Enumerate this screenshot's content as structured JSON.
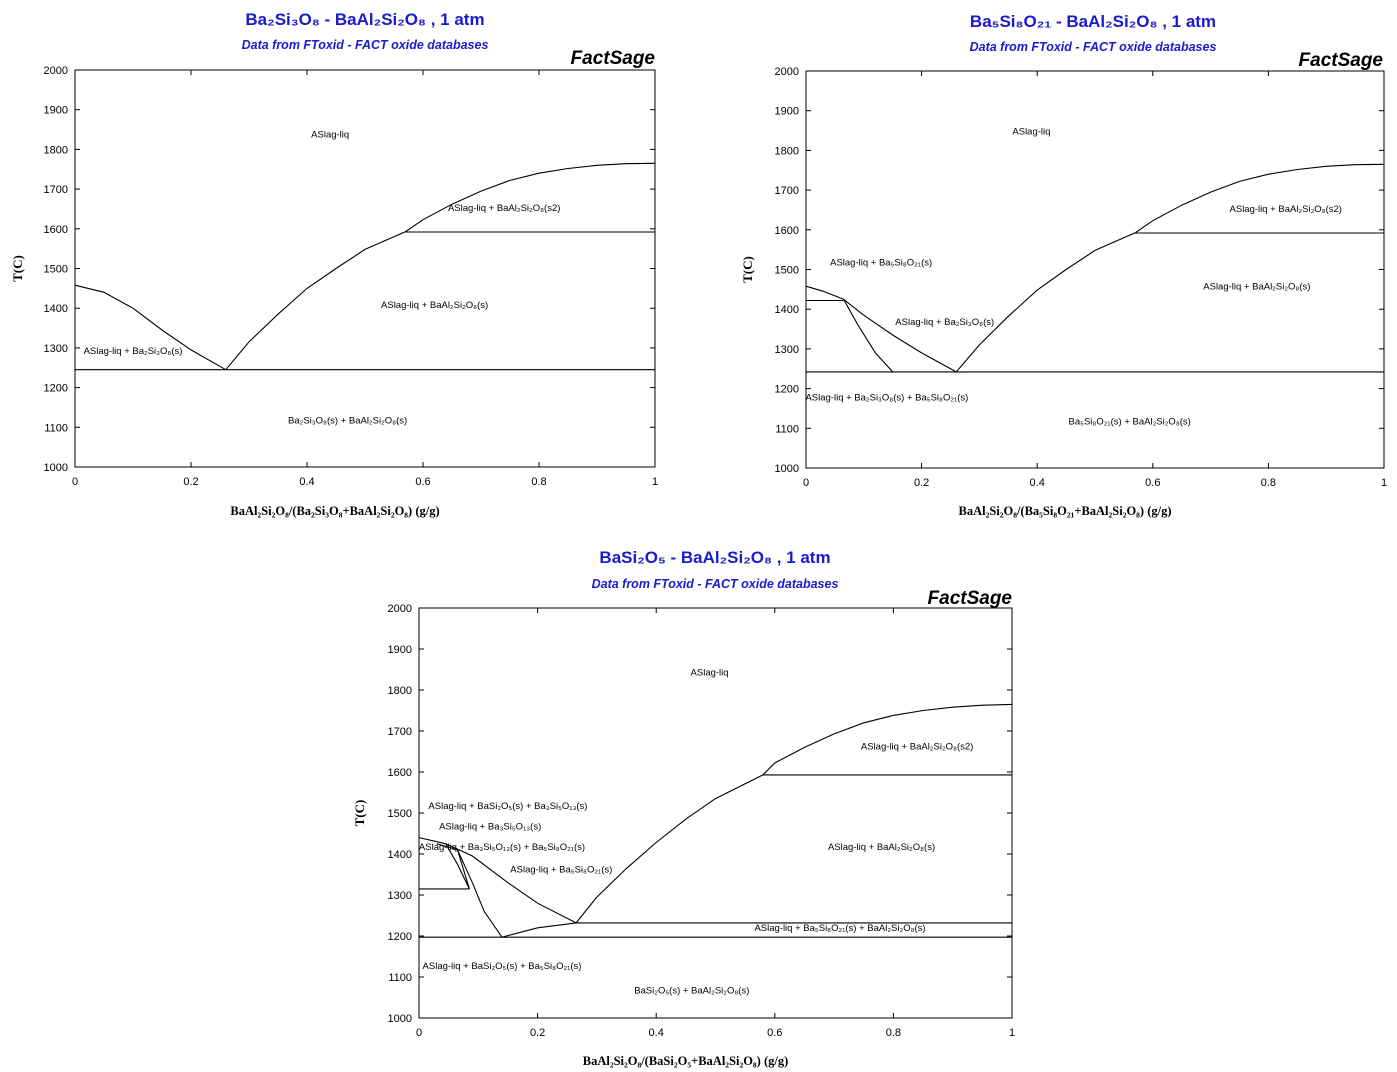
{
  "chart_data": [
    {
      "type": "line",
      "title": "Ba₂Si₃O₈ - BaAl₂Si₂O₈ , 1 atm",
      "subtitle": "Data from FToxid - FACT oxide databases",
      "brand": "FactSage",
      "xlabel": "BaAl₂Si₂O₈/(Ba₂Si₃O₈+BaAl₂Si₂O₈) (g/g)",
      "ylabel": "T(C)",
      "xlim": [
        0,
        1
      ],
      "ylim": [
        1000,
        2000
      ],
      "xticks": [
        0,
        0.2,
        0.4,
        0.6,
        0.8,
        1
      ],
      "xtick_labels": [
        "0",
        "0.2",
        "0.4",
        "0.6",
        "0.8",
        "1"
      ],
      "yticks": [
        1000,
        1100,
        1200,
        1300,
        1400,
        1500,
        1600,
        1700,
        1800,
        1900,
        2000
      ],
      "ytick_labels": [
        "1000",
        "1100",
        "1200",
        "1300",
        "1400",
        "1500",
        "1600",
        "1700",
        "1800",
        "1900",
        "2000"
      ],
      "series": [
        {
          "x": [
            0,
            0.05,
            0.1,
            0.15,
            0.2,
            0.26
          ],
          "y": [
            1458,
            1440,
            1400,
            1345,
            1295,
            1245
          ]
        },
        {
          "x": [
            0.26,
            0.3,
            0.35,
            0.4,
            0.45,
            0.5,
            0.57,
            0.6,
            0.65,
            0.7,
            0.75,
            0.8,
            0.85,
            0.9,
            0.95,
            1
          ],
          "y": [
            1245,
            1315,
            1385,
            1450,
            1500,
            1548,
            1593,
            1623,
            1662,
            1695,
            1722,
            1740,
            1752,
            1760,
            1764,
            1765
          ]
        },
        {
          "x": [
            0,
            1
          ],
          "y": [
            1245,
            1245
          ]
        },
        {
          "x": [
            0.57,
            1
          ],
          "y": [
            1592,
            1592
          ]
        }
      ],
      "annotations": [
        {
          "text": "ASlag-liq",
          "x": 0.44,
          "y": 1830
        },
        {
          "text": "ASlag-liq + BaAl₂Si₂O₈(s2)",
          "x": 0.74,
          "y": 1645
        },
        {
          "text": "ASlag-liq + BaAl₂Si₂O₈(s)",
          "x": 0.62,
          "y": 1400
        },
        {
          "text": "ASlag-liq + Ba₂Si₃O₈(s)",
          "x": 0.1,
          "y": 1285
        },
        {
          "text": "Ba₂Si₃O₈(s) + BaAl₂Si₂O₈(s)",
          "x": 0.47,
          "y": 1110
        }
      ]
    },
    {
      "type": "line",
      "title": "Ba₅Si₈O₂₁ - BaAl₂Si₂O₈ , 1 atm",
      "subtitle": "Data from FToxid - FACT oxide databases",
      "brand": "FactSage",
      "xlabel": "BaAl₂Si₂O₈/(Ba₅Si₈O₂₁+BaAl₂Si₂O₈) (g/g)",
      "ylabel": "T(C)",
      "xlim": [
        0,
        1
      ],
      "ylim": [
        1000,
        2000
      ],
      "xticks": [
        0,
        0.2,
        0.4,
        0.6,
        0.8,
        1
      ],
      "xtick_labels": [
        "0",
        "0.2",
        "0.4",
        "0.6",
        "0.8",
        "1"
      ],
      "yticks": [
        1000,
        1100,
        1200,
        1300,
        1400,
        1500,
        1600,
        1700,
        1800,
        1900,
        2000
      ],
      "ytick_labels": [
        "1000",
        "1100",
        "1200",
        "1300",
        "1400",
        "1500",
        "1600",
        "1700",
        "1800",
        "1900",
        "2000"
      ],
      "series": [
        {
          "x": [
            0,
            0.03,
            0.065
          ],
          "y": [
            1458,
            1445,
            1425
          ]
        },
        {
          "x": [
            0.065,
            0.1,
            0.15,
            0.2,
            0.26
          ],
          "y": [
            1425,
            1385,
            1335,
            1290,
            1242
          ]
        },
        {
          "x": [
            0.065,
            0.09,
            0.12,
            0.15
          ],
          "y": [
            1425,
            1360,
            1290,
            1242
          ]
        },
        {
          "x": [
            0.26,
            0.3,
            0.35,
            0.4,
            0.45,
            0.5,
            0.57,
            0.6,
            0.65,
            0.7,
            0.75,
            0.8,
            0.85,
            0.9,
            0.95,
            1
          ],
          "y": [
            1242,
            1310,
            1382,
            1448,
            1500,
            1548,
            1593,
            1623,
            1662,
            1695,
            1722,
            1740,
            1752,
            1760,
            1764,
            1765
          ]
        },
        {
          "x": [
            0,
            1
          ],
          "y": [
            1242,
            1242
          ]
        },
        {
          "x": [
            0,
            0.065
          ],
          "y": [
            1422,
            1422
          ]
        },
        {
          "x": [
            0.57,
            1
          ],
          "y": [
            1592,
            1592
          ]
        }
      ],
      "annotations": [
        {
          "text": "ASlag-liq",
          "x": 0.39,
          "y": 1840
        },
        {
          "text": "ASlag-liq + BaAl₂Si₂O₈(s2)",
          "x": 0.83,
          "y": 1645
        },
        {
          "text": "ASlag-liq + Ba₅Si₈O₂₁(s)",
          "x": 0.13,
          "y": 1510
        },
        {
          "text": "ASlag-liq + BaAl₂Si₂O₈(s)",
          "x": 0.78,
          "y": 1450
        },
        {
          "text": "ASlag-liq + Ba₂Si₃O₈(s)",
          "x": 0.24,
          "y": 1360
        },
        {
          "text": "ASlag-liq + Ba₂Si₃O₈(s) + Ba₅Si₈O₂₁(s)",
          "x": 0.14,
          "y": 1170
        },
        {
          "text": "Ba₅Si₈O₂₁(s) + BaAl₂Si₂O₈(s)",
          "x": 0.56,
          "y": 1110
        }
      ]
    },
    {
      "type": "line",
      "title": "BaSi₂O₅ - BaAl₂Si₂O₈ , 1 atm",
      "subtitle": "Data from FToxid - FACT oxide databases",
      "brand": "FactSage",
      "xlabel": "BaAl₂Si₂O₈/(BaSi₂O₅+BaAl₂Si₂O₈) (g/g)",
      "ylabel": "T(C)",
      "xlim": [
        0,
        1
      ],
      "ylim": [
        1000,
        2000
      ],
      "xticks": [
        0,
        0.2,
        0.4,
        0.6,
        0.8,
        1
      ],
      "xtick_labels": [
        "0",
        "0.2",
        "0.4",
        "0.6",
        "0.8",
        "1"
      ],
      "yticks": [
        1000,
        1100,
        1200,
        1300,
        1400,
        1500,
        1600,
        1700,
        1800,
        1900,
        2000
      ],
      "ytick_labels": [
        "1000",
        "1100",
        "1200",
        "1300",
        "1400",
        "1500",
        "1600",
        "1700",
        "1800",
        "1900",
        "2000"
      ],
      "series": [
        {
          "x": [
            0,
            0.03,
            0.045
          ],
          "y": [
            1440,
            1430,
            1425
          ]
        },
        {
          "x": [
            0.045,
            0.065,
            0.085
          ],
          "y": [
            1425,
            1375,
            1315
          ]
        },
        {
          "x": [
            0.03,
            0.065,
            0.085
          ],
          "y": [
            1425,
            1410,
            1315
          ]
        },
        {
          "x": [
            0.045,
            0.09,
            0.15,
            0.2,
            0.265
          ],
          "y": [
            1425,
            1395,
            1330,
            1280,
            1232
          ]
        },
        {
          "x": [
            0.065,
            0.09,
            0.11,
            0.14
          ],
          "y": [
            1410,
            1330,
            1260,
            1197
          ]
        },
        {
          "x": [
            0.14,
            0.2,
            0.265
          ],
          "y": [
            1197,
            1220,
            1232
          ]
        },
        {
          "x": [
            0.265,
            0.3,
            0.35,
            0.4,
            0.45,
            0.5,
            0.58,
            0.6,
            0.65,
            0.7,
            0.75,
            0.8,
            0.85,
            0.9,
            0.95,
            1
          ],
          "y": [
            1232,
            1295,
            1365,
            1428,
            1485,
            1535,
            1593,
            1622,
            1660,
            1693,
            1720,
            1738,
            1750,
            1758,
            1763,
            1765
          ]
        },
        {
          "x": [
            0,
            0.085
          ],
          "y": [
            1315,
            1315
          ]
        },
        {
          "x": [
            0.265,
            1
          ],
          "y": [
            1232,
            1232
          ]
        },
        {
          "x": [
            0,
            1
          ],
          "y": [
            1197,
            1197
          ]
        },
        {
          "x": [
            0.58,
            1
          ],
          "y": [
            1593,
            1593
          ]
        }
      ],
      "annotations": [
        {
          "text": "ASlag-liq",
          "x": 0.49,
          "y": 1835
        },
        {
          "text": "ASlag-liq + BaAl₂Si₂O₈(s2)",
          "x": 0.84,
          "y": 1655
        },
        {
          "text": "ASlag-liq + BaSi₂O₅(s) + Ba₃Si₅O₁₃(s)",
          "x": 0.15,
          "y": 1510
        },
        {
          "text": "ASlag-liq + Ba₃Si₅O₁₃(s)",
          "x": 0.12,
          "y": 1460
        },
        {
          "text": "ASlag-liq + Ba₃Si₅O₁₃(s) + Ba₅Si₈O₂₁(s)",
          "x": 0.14,
          "y": 1410
        },
        {
          "text": "ASlag-liq + BaAl₂Si₂O₈(s)",
          "x": 0.78,
          "y": 1410
        },
        {
          "text": "ASlag-liq + Ba₅Si₈O₂₁(s)",
          "x": 0.24,
          "y": 1355
        },
        {
          "text": "ASlag-liq + Ba₅Si₈O₂₁(s) + BaAl₂Si₂O₈(s)",
          "x": 0.71,
          "y": 1212
        },
        {
          "text": "ASlag-liq + BaSi₂O₅(s) + Ba₅Si₈O₂₁(s)",
          "x": 0.14,
          "y": 1120
        },
        {
          "text": "BaSi₂O₅(s) + BaAl₂Si₂O₈(s)",
          "x": 0.46,
          "y": 1060
        }
      ]
    }
  ]
}
